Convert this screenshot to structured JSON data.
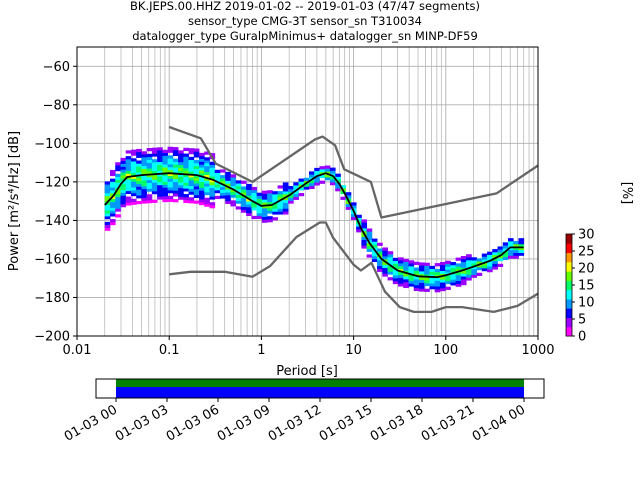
{
  "chart_data": [
    {
      "type": "heatmap",
      "title": [
        "BK.JEPS.00.HHZ   2019-01-02 -- 2019-01-03  (47/47 segments)",
        "sensor_type CMG-3T sensor_sn T310034",
        "datalogger_type GuralpMinimus+ datalogger_sn MINP-DF59"
      ],
      "xlabel": "Period [s]",
      "ylabel": "Power [m²/s⁴/Hz] [dB]",
      "xscale": "log",
      "xlim": [
        0.01,
        1000
      ],
      "ylim": [
        -200,
        -50
      ],
      "x_ticks": [
        {
          "value": 0.01,
          "label": "0.01"
        },
        {
          "value": 0.1,
          "label": "0.1"
        },
        {
          "value": 1,
          "label": "1"
        },
        {
          "value": 10,
          "label": "10"
        },
        {
          "value": 100,
          "label": "100"
        },
        {
          "value": 1000,
          "label": "1000"
        }
      ],
      "y_ticks": [
        {
          "value": -60,
          "label": "−60"
        },
        {
          "value": -80,
          "label": "−80"
        },
        {
          "value": -100,
          "label": "−100"
        },
        {
          "value": -120,
          "label": "−120"
        },
        {
          "value": -140,
          "label": "−140"
        },
        {
          "value": -160,
          "label": "−160"
        },
        {
          "value": -180,
          "label": "−180"
        },
        {
          "value": -200,
          "label": "−200"
        }
      ],
      "grid": true,
      "colorbar": {
        "label": "[%]",
        "range": [
          0,
          30
        ],
        "ticks": [
          "0",
          "5",
          "10",
          "15",
          "20",
          "25",
          "30"
        ]
      },
      "series": [
        {
          "role": "noise-model-upper",
          "color": "#666666",
          "points": [
            [
              0.1,
              -91.5
            ],
            [
              0.22,
              -97.4
            ],
            [
              0.32,
              -110.5
            ],
            [
              0.8,
              -120
            ],
            [
              3.8,
              -98
            ],
            [
              4.6,
              -96.5
            ],
            [
              6.3,
              -101
            ],
            [
              7.9,
              -113.5
            ],
            [
              15.4,
              -120
            ],
            [
              20,
              -138.5
            ],
            [
              354.8,
              -126
            ],
            [
              1000,
              -111.5
            ]
          ]
        },
        {
          "role": "noise-model-lower",
          "color": "#666666",
          "points": [
            [
              0.1,
              -168
            ],
            [
              0.17,
              -166.7
            ],
            [
              0.4,
              -166.7
            ],
            [
              0.8,
              -169.2
            ],
            [
              1.24,
              -163.7
            ],
            [
              2.4,
              -148.6
            ],
            [
              4.3,
              -141.1
            ],
            [
              5,
              -141.1
            ],
            [
              6,
              -149
            ],
            [
              10,
              -163
            ],
            [
              12,
              -166
            ],
            [
              15.6,
              -162
            ],
            [
              21.9,
              -177
            ],
            [
              31.6,
              -185
            ],
            [
              45,
              -187.5
            ],
            [
              70,
              -187.5
            ],
            [
              100,
              -185
            ],
            [
              150,
              -185
            ],
            [
              331,
              -187.5
            ],
            [
              600,
              -184.4
            ],
            [
              1000,
              -178
            ]
          ]
        },
        {
          "role": "median",
          "color": "#000000",
          "points": [
            [
              0.02,
              -132
            ],
            [
              0.025,
              -127
            ],
            [
              0.03,
              -121
            ],
            [
              0.035,
              -117.5
            ],
            [
              0.05,
              -116.5
            ],
            [
              0.1,
              -115.5
            ],
            [
              0.2,
              -116.5
            ],
            [
              0.3,
              -119
            ],
            [
              0.5,
              -124
            ],
            [
              0.8,
              -130
            ],
            [
              1,
              -132.5
            ],
            [
              1.3,
              -132
            ],
            [
              2,
              -127
            ],
            [
              3,
              -121
            ],
            [
              4,
              -117
            ],
            [
              5,
              -115.5
            ],
            [
              6,
              -117
            ],
            [
              7,
              -121
            ],
            [
              8,
              -126
            ],
            [
              10,
              -135
            ],
            [
              12,
              -144
            ],
            [
              15,
              -152
            ],
            [
              20,
              -160
            ],
            [
              30,
              -166
            ],
            [
              50,
              -169
            ],
            [
              80,
              -169.5
            ],
            [
              100,
              -168.5
            ],
            [
              150,
              -166
            ],
            [
              200,
              -164
            ],
            [
              300,
              -161
            ],
            [
              400,
              -158
            ],
            [
              500,
              -154
            ],
            [
              700,
              -154
            ]
          ]
        }
      ],
      "density": {
        "description": "probabilistic PSD histogram of power per period bin",
        "center": "median",
        "colormap": [
          "#ffffff",
          "#ff00ff",
          "#9900ff",
          "#0000ff",
          "#0099ff",
          "#00ffff",
          "#00ff66",
          "#66ff00",
          "#ffff00",
          "#ff9900",
          "#ff0000",
          "#990000"
        ]
      }
    },
    {
      "type": "timeline",
      "description": "data availability of segments",
      "x_labels": [
        "01-03 00",
        "01-03 03",
        "01-03 06",
        "01-03 09",
        "01-03 12",
        "01-03 15",
        "01-03 18",
        "01-03 21",
        "01-04 00"
      ],
      "bands": [
        {
          "role": "coverage",
          "color": "#008000"
        },
        {
          "role": "segments",
          "color": "#0000ff"
        }
      ]
    }
  ]
}
